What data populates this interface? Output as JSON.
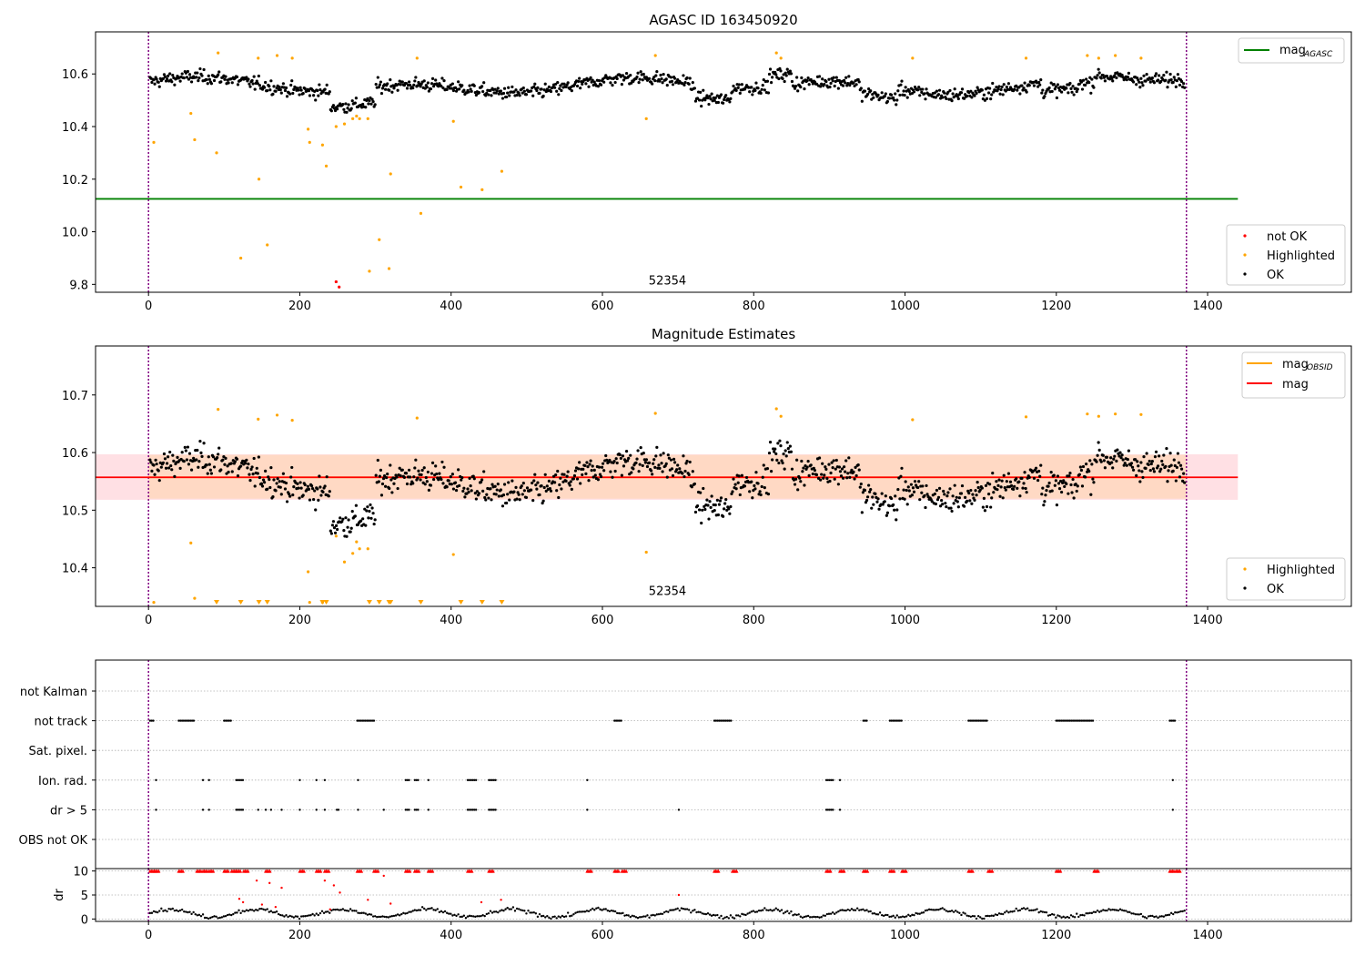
{
  "colors": {
    "ok": "#000000",
    "highlighted": "#ffa500",
    "not_ok": "#ff0000",
    "agasc_line": "#008000",
    "mag_line": "#ff0000",
    "obsid_line": "#ffa500",
    "band_outer": "#ffe0e4",
    "band_inner": "#ffd9c4",
    "vline": "#800080",
    "grid": "#b0b0b0"
  },
  "chart_data": [
    {
      "type": "scatter",
      "title": "AGASC ID 163450920",
      "xlim": [
        -70,
        1590
      ],
      "ylim": [
        9.77,
        10.76
      ],
      "xticks": [
        0,
        200,
        400,
        600,
        800,
        1000,
        1200,
        1400
      ],
      "yticks": [
        9.8,
        10.0,
        10.2,
        10.4,
        10.6
      ],
      "ytick_labels": [
        "9.8",
        "10.0",
        "10.2",
        "10.4",
        "10.6"
      ],
      "vlines": [
        0,
        1372
      ],
      "hline": {
        "y": 10.125,
        "x0": -70,
        "x1": 1440,
        "name": "mag",
        "subscript": "AGASC"
      },
      "obsid_label": {
        "text": "52354",
        "x": 686,
        "y": 9.8
      },
      "legend_lines": [
        {
          "name": "mag",
          "subscript": "AGASC"
        }
      ],
      "legend_points": [
        "not OK",
        "Highlighted",
        "OK"
      ],
      "ok_base": 10.555,
      "highlighted_points": [
        [
          7,
          10.34
        ],
        [
          56,
          10.45
        ],
        [
          61,
          10.35
        ],
        [
          90,
          10.3
        ],
        [
          92,
          10.68
        ],
        [
          122,
          9.9
        ],
        [
          145,
          10.66
        ],
        [
          146,
          10.2
        ],
        [
          157,
          9.95
        ],
        [
          170,
          10.67
        ],
        [
          190,
          10.66
        ],
        [
          211,
          10.39
        ],
        [
          213,
          10.34
        ],
        [
          230,
          10.33
        ],
        [
          235,
          10.25
        ],
        [
          248,
          10.4
        ],
        [
          259,
          10.41
        ],
        [
          270,
          10.43
        ],
        [
          275,
          10.44
        ],
        [
          279,
          10.43
        ],
        [
          290,
          10.43
        ],
        [
          292,
          9.85
        ],
        [
          305,
          9.97
        ],
        [
          318,
          9.86
        ],
        [
          320,
          10.22
        ],
        [
          355,
          10.66
        ],
        [
          360,
          10.07
        ],
        [
          403,
          10.42
        ],
        [
          413,
          10.17
        ],
        [
          441,
          10.16
        ],
        [
          467,
          10.23
        ],
        [
          658,
          10.43
        ],
        [
          670,
          10.67
        ],
        [
          830,
          10.68
        ],
        [
          836,
          10.66
        ],
        [
          1010,
          10.66
        ],
        [
          1160,
          10.66
        ],
        [
          1241,
          10.67
        ],
        [
          1256,
          10.66
        ],
        [
          1278,
          10.67
        ],
        [
          1312,
          10.66
        ]
      ],
      "not_ok_points": [
        [
          248,
          9.81
        ],
        [
          252,
          9.79
        ]
      ]
    },
    {
      "type": "scatter",
      "title": "Magnitude Estimates",
      "xlim": [
        -70,
        1590
      ],
      "ylim": [
        10.333,
        10.785
      ],
      "xticks": [
        0,
        200,
        400,
        600,
        800,
        1000,
        1200,
        1400
      ],
      "yticks": [
        10.4,
        10.5,
        10.6,
        10.7
      ],
      "ytick_labels": [
        "10.4",
        "10.5",
        "10.6",
        "10.7"
      ],
      "vlines": [
        0,
        1372
      ],
      "mag": 10.557,
      "band_outer": [
        10.518,
        10.597
      ],
      "band_inner": [
        10.52,
        10.596
      ],
      "band_inner_x": [
        0,
        1372
      ],
      "band_outer_x": [
        -70,
        1440
      ],
      "obsid_label": {
        "text": "52354",
        "x": 686,
        "y": 10.345
      },
      "legend_lines": [
        {
          "name": "mag",
          "subscript": "OBSID"
        },
        {
          "name": "mag",
          "subscript": ""
        }
      ],
      "legend_points": [
        "Highlighted",
        "OK"
      ],
      "highlighted_points": [
        [
          7,
          10.34
        ],
        [
          56,
          10.443
        ],
        [
          61,
          10.347
        ],
        [
          92,
          10.675
        ],
        [
          145,
          10.658
        ],
        [
          170,
          10.665
        ],
        [
          190,
          10.656
        ],
        [
          211,
          10.393
        ],
        [
          213,
          10.34
        ],
        [
          230,
          10.34
        ],
        [
          248,
          10.455
        ],
        [
          259,
          10.41
        ],
        [
          270,
          10.425
        ],
        [
          275,
          10.445
        ],
        [
          279,
          10.433
        ],
        [
          290,
          10.433
        ],
        [
          355,
          10.66
        ],
        [
          403,
          10.423
        ],
        [
          658,
          10.427
        ],
        [
          670,
          10.668
        ],
        [
          830,
          10.676
        ],
        [
          836,
          10.663
        ],
        [
          1010,
          10.657
        ],
        [
          1160,
          10.662
        ],
        [
          1241,
          10.667
        ],
        [
          1256,
          10.663
        ],
        [
          1278,
          10.667
        ],
        [
          1312,
          10.666
        ]
      ],
      "lower_limits": [
        90,
        122,
        146,
        157,
        230,
        235,
        292,
        305,
        318,
        320,
        360,
        413,
        441,
        467
      ]
    },
    {
      "type": "scatter",
      "xlim": [
        -70,
        1590
      ],
      "xticks": [
        0,
        200,
        400,
        600,
        800,
        1000,
        1200,
        1400
      ],
      "vlines": [
        0,
        1372
      ],
      "flag_labels": [
        "not Kalman",
        "not track",
        "Sat. pixel.",
        "Ion. rad.",
        "dr > 5",
        "OBS not OK"
      ],
      "flags": {
        "not track": [
          [
            2,
            8
          ],
          [
            40,
            62
          ],
          [
            64,
            62
          ],
          [
            100,
            110
          ],
          [
            276,
            298
          ],
          [
            616,
            626
          ],
          [
            748,
            772
          ],
          [
            945,
            950
          ],
          [
            980,
            996
          ],
          [
            1084,
            1110
          ],
          [
            1200,
            1250
          ],
          [
            1350,
            1358
          ]
        ],
        "Ion. rad.": [
          [
            10,
            10
          ],
          [
            72,
            72
          ],
          [
            80,
            80
          ],
          [
            116,
            126
          ],
          [
            200,
            200
          ],
          [
            222,
            222
          ],
          [
            233,
            233
          ],
          [
            277,
            277
          ],
          [
            340,
            345
          ],
          [
            352,
            358
          ],
          [
            370,
            370
          ],
          [
            422,
            435
          ],
          [
            450,
            460
          ],
          [
            580,
            580
          ],
          [
            896,
            906
          ],
          [
            914,
            914
          ],
          [
            1354,
            1354
          ]
        ],
        "dr > 5": [
          [
            10,
            10
          ],
          [
            72,
            72
          ],
          [
            80,
            80
          ],
          [
            116,
            126
          ],
          [
            145,
            145
          ],
          [
            155,
            155
          ],
          [
            162,
            162
          ],
          [
            176,
            176
          ],
          [
            200,
            200
          ],
          [
            222,
            222
          ],
          [
            233,
            233
          ],
          [
            249,
            253
          ],
          [
            277,
            277
          ],
          [
            311,
            311
          ],
          [
            340,
            345
          ],
          [
            352,
            358
          ],
          [
            370,
            370
          ],
          [
            422,
            435
          ],
          [
            450,
            460
          ],
          [
            580,
            580
          ],
          [
            701,
            701
          ],
          [
            896,
            906
          ],
          [
            914,
            914
          ],
          [
            1354,
            1354
          ]
        ]
      }
    },
    {
      "type": "scatter",
      "ylabel": "dr",
      "xlim": [
        -70,
        1590
      ],
      "ylim": [
        -0.5,
        10.5
      ],
      "yticks": [
        0,
        5,
        10
      ],
      "ytick_labels": [
        "0",
        "5",
        "10"
      ],
      "xticks": [
        0,
        200,
        400,
        600,
        800,
        1000,
        1200,
        1400
      ],
      "xtick_labels": [
        "0",
        "200",
        "400",
        "600",
        "800",
        "1000",
        "1200",
        "1400"
      ],
      "vlines": [
        0,
        1372
      ],
      "capped_points": [
        2,
        8,
        40,
        64,
        72,
        80,
        100,
        110,
        116,
        126,
        155,
        200,
        222,
        233,
        276,
        298,
        340,
        352,
        370,
        422,
        450,
        580,
        616,
        626,
        748,
        772,
        896,
        914,
        945,
        980,
        996,
        1084,
        1110,
        1200,
        1250,
        1350,
        1358
      ],
      "scattered_points": [
        [
          120,
          4.2
        ],
        [
          125,
          3.5
        ],
        [
          143,
          8
        ],
        [
          150,
          3
        ],
        [
          160,
          7.5
        ],
        [
          168,
          2.5
        ],
        [
          176,
          6.5
        ],
        [
          233,
          8
        ],
        [
          240,
          2
        ],
        [
          245,
          7
        ],
        [
          253,
          5.5
        ],
        [
          290,
          4
        ],
        [
          311,
          9
        ],
        [
          320,
          3.2
        ],
        [
          440,
          3.5
        ],
        [
          466,
          4
        ],
        [
          701,
          5
        ]
      ]
    }
  ]
}
